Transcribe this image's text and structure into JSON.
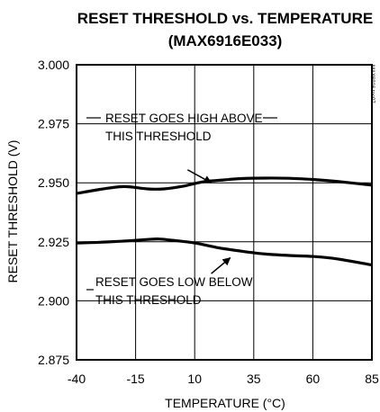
{
  "chart_data": {
    "type": "line",
    "title": "RESET THRESHOLD vs. TEMPERATURE",
    "subtitle": "(MAX6916E033)",
    "xlabel": "TEMPERATURE (°C)",
    "ylabel": "RESET THRESHOLD (V)",
    "xlim": [
      -40,
      85
    ],
    "ylim": [
      2.875,
      3.0
    ],
    "xticks": [
      "-40",
      "-15",
      "10",
      "35",
      "60",
      "85"
    ],
    "yticks": [
      "3.000",
      "2.975",
      "2.950",
      "2.925",
      "2.900",
      "2.875"
    ],
    "grid": true,
    "side_code": "MAX6916 toc07",
    "series": [
      {
        "name": "RESET GOES HIGH ABOVE THIS THRESHOLD",
        "x": [
          -40,
          -30,
          -20,
          -10,
          -3,
          5,
          10,
          15,
          22,
          30,
          40,
          50,
          60,
          70,
          85
        ],
        "y": [
          2.9455,
          2.9472,
          2.9484,
          2.9474,
          2.9474,
          2.9485,
          2.9497,
          2.9506,
          2.9512,
          2.9518,
          2.952,
          2.9519,
          2.9514,
          2.9506,
          2.949
        ]
      },
      {
        "name": "RESET GOES LOW BELOW THIS THRESHOLD",
        "x": [
          -40,
          -30,
          -20,
          -10,
          -5,
          0,
          10,
          20,
          30,
          40,
          50,
          60,
          70,
          85
        ],
        "y": [
          2.9245,
          2.9248,
          2.9253,
          2.926,
          2.9262,
          2.9257,
          2.9245,
          2.9225,
          2.921,
          2.9198,
          2.9192,
          2.9188,
          2.9178,
          2.9152
        ]
      }
    ],
    "annotations": [
      {
        "lines": [
          "RESET GOES HIGH ABOVE",
          "THIS THRESHOLD"
        ],
        "arrow_from": [
          7,
          2.9555
        ],
        "arrow_to": [
          17,
          2.95
        ]
      },
      {
        "lines": [
          "RESET GOES LOW BELOW",
          "THIS THRESHOLD"
        ],
        "arrow_from": [
          17,
          2.9115
        ],
        "arrow_to": [
          25,
          2.9182
        ]
      }
    ]
  }
}
